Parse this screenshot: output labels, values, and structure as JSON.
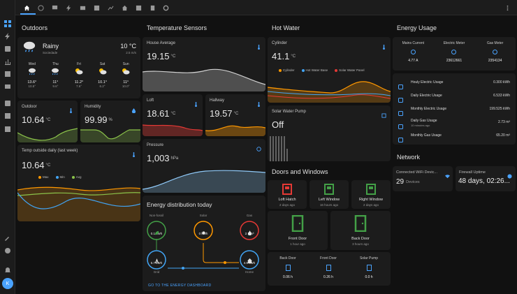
{
  "sidebar": {
    "icons": [
      "overview-icon",
      "energy-icon",
      "logbook-icon",
      "history-icon",
      "map-icon",
      "media-icon",
      "todo-icon",
      "calendar-icon",
      "devtools-icon",
      "settings-icon",
      "notifications-icon"
    ],
    "avatar": "K"
  },
  "topbar": {
    "tabs": [
      "home-icon",
      "clock-icon",
      "monitor-icon",
      "flash-icon",
      "tv-icon",
      "picture-icon",
      "chart-icon",
      "house-icon",
      "calendar-icon",
      "door-icon",
      "refresh-icon"
    ],
    "menu_icon": "more-vertical-icon"
  },
  "outdoors": {
    "title": "Outdoors",
    "weather": {
      "condition": "Rainy",
      "location": "Sociedade",
      "temp": "10 °C",
      "wind": "2.5 m/s",
      "forecast": [
        {
          "day": "Wed",
          "hi": "13.6°",
          "lo": "10.5°",
          "icon": "rain"
        },
        {
          "day": "Thu",
          "hi": "11°",
          "lo": "9.6°",
          "icon": "rain"
        },
        {
          "day": "Fri",
          "hi": "11.2°",
          "lo": "7.6°",
          "icon": "partly"
        },
        {
          "day": "Sat",
          "hi": "10.1°",
          "lo": "6.2°",
          "icon": "partly"
        },
        {
          "day": "Sun",
          "hi": "11°",
          "lo": "10.0°",
          "icon": "partly"
        }
      ]
    },
    "outdoor": {
      "label": "Outdoor",
      "value": "10.64",
      "unit": "°C"
    },
    "humidity": {
      "label": "Humidity",
      "value": "99.99",
      "unit": "%"
    },
    "weekly": {
      "label": "Temp outside daily (last week)",
      "value": "10.64",
      "unit": "°C",
      "legend": [
        "Max",
        "Min",
        "Avg"
      ]
    }
  },
  "temperature": {
    "title": "Temperature Sensors",
    "house": {
      "label": "House Average",
      "value": "19.15",
      "unit": "°C"
    },
    "loft": {
      "label": "Loft",
      "value": "18.61",
      "unit": "°C"
    },
    "hallway": {
      "label": "Hallway",
      "value": "19.57",
      "unit": "°C"
    },
    "pressure": {
      "label": "Pressure",
      "value": "1,003",
      "unit": "hPa"
    }
  },
  "energy_dist": {
    "title": "Energy distribution today",
    "nodes": {
      "non_fossil": {
        "label": "Non-fossil",
        "value": "0.1 kWh"
      },
      "solar": {
        "label": "Solar",
        "value": "0 kWh"
      },
      "gas": {
        "label": "Gas",
        "value": "2.7 m³"
      },
      "grid": {
        "label": "Grid",
        "value": "5.7 kWh"
      },
      "home": {
        "label": "Home",
        "value": "4.9 kWh"
      }
    },
    "link": "GO TO THE ENERGY DASHBOARD"
  },
  "hot_water": {
    "title": "Hot Water",
    "cylinder": {
      "label": "Cylinder",
      "value": "41.1",
      "unit": "°C",
      "legend": [
        "Cylinder",
        "Hot Water Base",
        "Solar Water Panel"
      ]
    },
    "pump": {
      "label": "Solar Water Pump",
      "state": "Off"
    }
  },
  "doors": {
    "title": "Doors and Windows",
    "top": [
      {
        "name": "Loft Hatch",
        "state": "2 days ago",
        "color": "#e53935"
      },
      {
        "name": "Left Window",
        "state": "16 hours ago",
        "color": "#43a047"
      },
      {
        "name": "Right Window",
        "state": "2 days ago",
        "color": "#43a047"
      }
    ],
    "mid": [
      {
        "name": "Front Door",
        "state": "1 hour ago",
        "color": "#43a047"
      },
      {
        "name": "Back Door",
        "state": "3 hours ago",
        "color": "#43a047"
      }
    ],
    "bottom": [
      {
        "name": "Back Door",
        "value": "0.06 h"
      },
      {
        "name": "Front Door",
        "value": "0.26 h"
      },
      {
        "name": "Solar Pump",
        "value": "0.0 h"
      }
    ]
  },
  "energy_usage": {
    "title": "Energy Usage",
    "meters": [
      {
        "name": "Mains Current",
        "value": "4.77 A"
      },
      {
        "name": "Electric Meter",
        "value": "23612661"
      },
      {
        "name": "Gas Meter",
        "value": "2354134"
      }
    ],
    "rows": [
      {
        "name": "Houly Electric Usage",
        "sub": "",
        "value": "0.300 kWh"
      },
      {
        "name": "Daily Electric Usage",
        "sub": "",
        "value": "6.533 kWh"
      },
      {
        "name": "Monthly Electric Usage",
        "sub": "",
        "value": "199.525 kWh"
      },
      {
        "name": "Daily Gas Usage",
        "sub": "10 minutes ago",
        "value": "2.73 m³"
      },
      {
        "name": "Monthly Gas Usage",
        "sub": "",
        "value": "65.20 m³"
      }
    ]
  },
  "network": {
    "title": "Network",
    "wifi": {
      "label": "Connected WiFi Devic...",
      "value": "29",
      "unit": "Devices"
    },
    "uptime": {
      "label": "Firewall Uptime",
      "value": "48 days, 02:26..."
    }
  },
  "colors": {
    "accent": "#4aa3ff",
    "max": "#ff9800",
    "min": "#42a5f5",
    "avg": "#8bc34a",
    "green": "#43a047",
    "red": "#e53935"
  }
}
